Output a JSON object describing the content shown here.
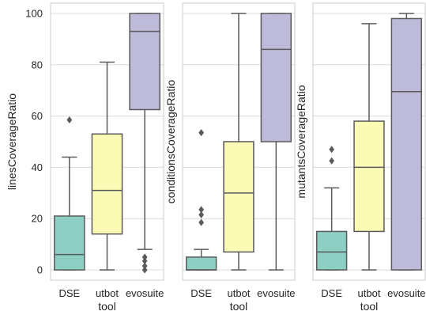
{
  "chart_data": {
    "type": "boxplot",
    "shared_y": true,
    "ylim": [
      -4,
      104
    ],
    "yticks": [
      0,
      20,
      40,
      60,
      80,
      100
    ],
    "grid": true,
    "xlabel": "tool",
    "categories": [
      "DSE",
      "utbot",
      "evosuite"
    ],
    "colors": [
      "#8ecfc3",
      "#fbfbb6",
      "#bebad9"
    ],
    "panels": [
      {
        "ylabel": "linesCoverageRatio",
        "boxes": [
          {
            "category": "DSE",
            "whisker_low": 0,
            "q1": 0,
            "median": 6,
            "q3": 21,
            "whisker_high": 44,
            "outliers": [
              58.5
            ]
          },
          {
            "category": "utbot",
            "whisker_low": 0,
            "q1": 14,
            "median": 31,
            "q3": 53,
            "whisker_high": 81,
            "outliers": []
          },
          {
            "category": "evosuite",
            "whisker_low": 8,
            "q1": 62.5,
            "median": 93,
            "q3": 100,
            "whisker_high": 100,
            "outliers": [
              5,
              3.5,
              1.5,
              0
            ]
          }
        ]
      },
      {
        "ylabel": "conditionsCoverageRatio",
        "boxes": [
          {
            "category": "DSE",
            "whisker_low": 0,
            "q1": 0,
            "median": 0,
            "q3": 5,
            "whisker_high": 8,
            "outliers": [
              53.5,
              23.5,
              21.5,
              18.5
            ]
          },
          {
            "category": "utbot",
            "whisker_low": 0,
            "q1": 7,
            "median": 30,
            "q3": 50,
            "whisker_high": 100,
            "outliers": []
          },
          {
            "category": "evosuite",
            "whisker_low": 0,
            "q1": 50,
            "median": 86,
            "q3": 100,
            "whisker_high": 100,
            "outliers": []
          }
        ]
      },
      {
        "ylabel": "mutantsCoverageRatio",
        "boxes": [
          {
            "category": "DSE",
            "whisker_low": 0,
            "q1": 0,
            "median": 7,
            "q3": 15,
            "whisker_high": 32,
            "outliers": [
              47,
              42.5
            ]
          },
          {
            "category": "utbot",
            "whisker_low": 0,
            "q1": 15,
            "median": 40,
            "q3": 58,
            "whisker_high": 96,
            "outliers": []
          },
          {
            "category": "evosuite",
            "whisker_low": 0,
            "q1": 0,
            "median": 69.5,
            "q3": 98,
            "whisker_high": 100,
            "outliers": []
          }
        ]
      }
    ]
  }
}
